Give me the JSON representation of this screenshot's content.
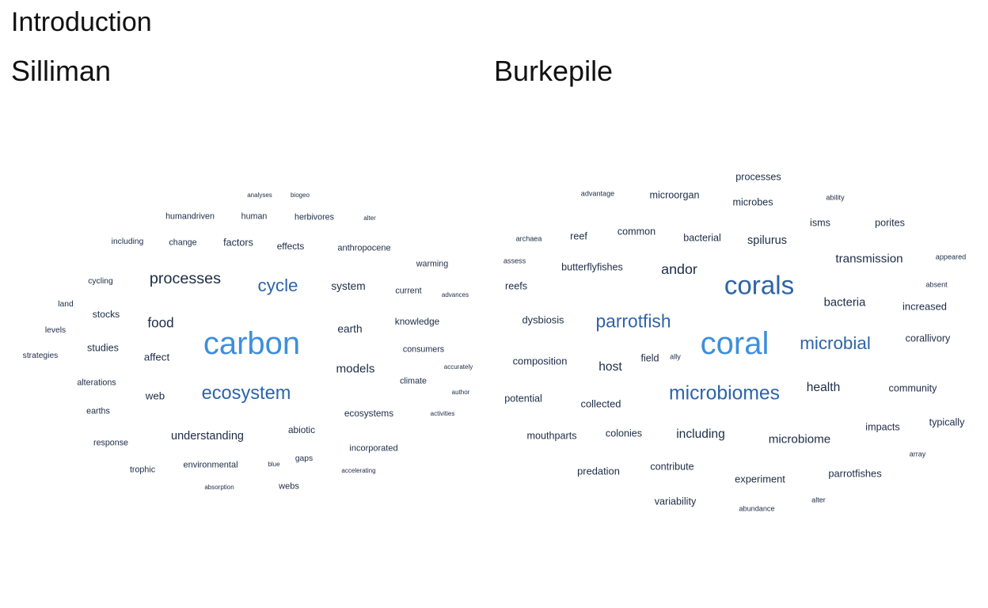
{
  "header": {
    "title": "Introduction"
  },
  "colors": {
    "dark": "#1c2b45",
    "mid": "#2d64a8",
    "bright": "#3d8fdb"
  },
  "chart_data": [
    {
      "type": "wordcloud",
      "title": "Silliman",
      "words": [
        {
          "text": "carbon",
          "weight": 100
        },
        {
          "text": "ecosystem",
          "weight": 55
        },
        {
          "text": "cycle",
          "weight": 52
        },
        {
          "text": "processes",
          "weight": 45
        },
        {
          "text": "food",
          "weight": 38
        },
        {
          "text": "models",
          "weight": 33
        },
        {
          "text": "understanding",
          "weight": 31
        },
        {
          "text": "earth",
          "weight": 29
        },
        {
          "text": "system",
          "weight": 29
        },
        {
          "text": "affect",
          "weight": 28
        },
        {
          "text": "web",
          "weight": 28
        },
        {
          "text": "factors",
          "weight": 26
        },
        {
          "text": "studies",
          "weight": 26
        },
        {
          "text": "stocks",
          "weight": 25
        },
        {
          "text": "ecosystems",
          "weight": 24
        },
        {
          "text": "abiotic",
          "weight": 24
        },
        {
          "text": "effects",
          "weight": 24
        },
        {
          "text": "knowledge",
          "weight": 24
        },
        {
          "text": "environmental",
          "weight": 22
        },
        {
          "text": "anthropocene",
          "weight": 22
        },
        {
          "text": "incorporated",
          "weight": 22
        },
        {
          "text": "webs",
          "weight": 22
        },
        {
          "text": "current",
          "weight": 21
        },
        {
          "text": "climate",
          "weight": 21
        },
        {
          "text": "consumers",
          "weight": 21
        },
        {
          "text": "humandriven",
          "weight": 21
        },
        {
          "text": "human",
          "weight": 21
        },
        {
          "text": "herbivores",
          "weight": 21
        },
        {
          "text": "change",
          "weight": 21
        },
        {
          "text": "warming",
          "weight": 21
        },
        {
          "text": "response",
          "weight": 21
        },
        {
          "text": "trophic",
          "weight": 21
        },
        {
          "text": "earths",
          "weight": 21
        },
        {
          "text": "alterations",
          "weight": 21
        },
        {
          "text": "including",
          "weight": 20
        },
        {
          "text": "cycling",
          "weight": 20
        },
        {
          "text": "land",
          "weight": 20
        },
        {
          "text": "levels",
          "weight": 20
        },
        {
          "text": "strategies",
          "weight": 20
        },
        {
          "text": "gaps",
          "weight": 20
        },
        {
          "text": "analyses",
          "weight": 14
        },
        {
          "text": "biogeo",
          "weight": 14
        },
        {
          "text": "alter",
          "weight": 14
        },
        {
          "text": "advances",
          "weight": 14
        },
        {
          "text": "accurately",
          "weight": 14
        },
        {
          "text": "author",
          "weight": 14
        },
        {
          "text": "activities",
          "weight": 14
        },
        {
          "text": "blue",
          "weight": 14
        },
        {
          "text": "accelerating",
          "weight": 14
        },
        {
          "text": "absorption",
          "weight": 14
        }
      ]
    },
    {
      "type": "wordcloud",
      "title": "Burkepile",
      "words": [
        {
          "text": "coral",
          "weight": 100
        },
        {
          "text": "corals",
          "weight": 80
        },
        {
          "text": "microbiomes",
          "weight": 58
        },
        {
          "text": "parrotfish",
          "weight": 53
        },
        {
          "text": "microbial",
          "weight": 52
        },
        {
          "text": "andor",
          "weight": 40
        },
        {
          "text": "health",
          "weight": 34
        },
        {
          "text": "host",
          "weight": 34
        },
        {
          "text": "including",
          "weight": 34
        },
        {
          "text": "microbiome",
          "weight": 33
        },
        {
          "text": "transmission",
          "weight": 33
        },
        {
          "text": "bacteria",
          "weight": 32
        },
        {
          "text": "spilurus",
          "weight": 31
        },
        {
          "text": "experiment",
          "weight": 27
        },
        {
          "text": "parrotfishes",
          "weight": 27
        },
        {
          "text": "predation",
          "weight": 27
        },
        {
          "text": "collected",
          "weight": 27
        },
        {
          "text": "composition",
          "weight": 27
        },
        {
          "text": "dysbiosis",
          "weight": 27
        },
        {
          "text": "increased",
          "weight": 27
        },
        {
          "text": "mouthparts",
          "weight": 26
        },
        {
          "text": "variability",
          "weight": 26
        },
        {
          "text": "contribute",
          "weight": 26
        },
        {
          "text": "colonies",
          "weight": 26
        },
        {
          "text": "impacts",
          "weight": 26
        },
        {
          "text": "typically",
          "weight": 26
        },
        {
          "text": "corallivory",
          "weight": 26
        },
        {
          "text": "community",
          "weight": 26
        },
        {
          "text": "potential",
          "weight": 26
        },
        {
          "text": "field",
          "weight": 26
        },
        {
          "text": "reefs",
          "weight": 26
        },
        {
          "text": "butterflyfishes",
          "weight": 26
        },
        {
          "text": "reef",
          "weight": 26
        },
        {
          "text": "common",
          "weight": 26
        },
        {
          "text": "bacterial",
          "weight": 26
        },
        {
          "text": "microorgan",
          "weight": 26
        },
        {
          "text": "microbes",
          "weight": 26
        },
        {
          "text": "processes",
          "weight": 26
        },
        {
          "text": "isms",
          "weight": 26
        },
        {
          "text": "porites",
          "weight": 26
        },
        {
          "text": "advantage",
          "weight": 17
        },
        {
          "text": "ability",
          "weight": 17
        },
        {
          "text": "archaea",
          "weight": 17
        },
        {
          "text": "assess",
          "weight": 17
        },
        {
          "text": "appeared",
          "weight": 17
        },
        {
          "text": "absent",
          "weight": 17
        },
        {
          "text": "ally",
          "weight": 17
        },
        {
          "text": "array",
          "weight": 17
        },
        {
          "text": "alter",
          "weight": 17
        },
        {
          "text": "abundance",
          "weight": 17
        }
      ]
    }
  ]
}
